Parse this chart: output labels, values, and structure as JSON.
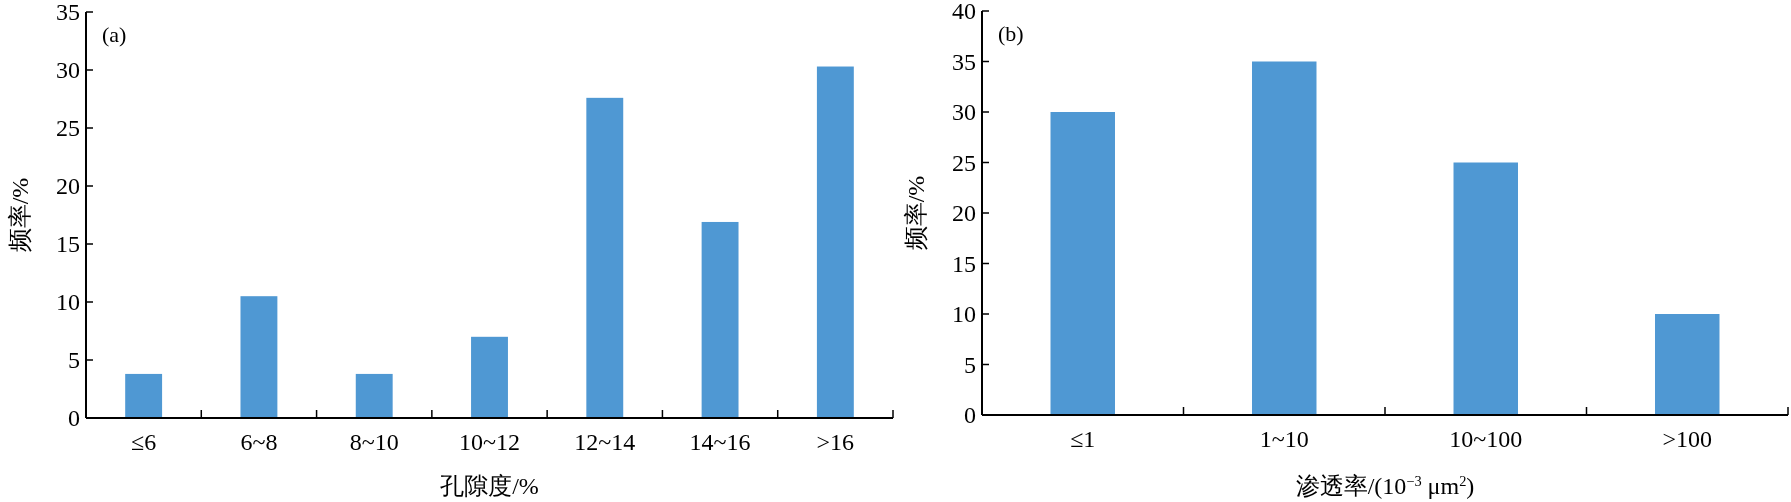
{
  "chart_data": [
    {
      "type": "bar",
      "annotations": [
        "(a)"
      ],
      "xlabel": "孔隙度/%",
      "ylabel": "频率/%",
      "categories": [
        "≤6",
        "6~8",
        "8~10",
        "10~12",
        "12~14",
        "14~16",
        ">16"
      ],
      "values": [
        3.8,
        10.5,
        3.8,
        7.0,
        27.6,
        16.9,
        30.3
      ],
      "color": "#4f98d3",
      "ylim": [
        0,
        35
      ],
      "yticks": [
        0,
        5,
        10,
        15,
        20,
        25,
        30,
        35
      ]
    },
    {
      "type": "bar",
      "annotations": [
        "(b)"
      ],
      "xlabel": "渗透率/(10$^{−3}$ μm$^{2}$)",
      "ylabel": "频率/%",
      "categories": [
        "≤1",
        "1~10",
        "10~100",
        ">100"
      ],
      "values": [
        30,
        35,
        25,
        10
      ],
      "color": "#4f98d3",
      "ylim": [
        0,
        40
      ],
      "yticks": [
        0,
        5,
        10,
        15,
        20,
        25,
        30,
        35,
        40
      ]
    }
  ]
}
